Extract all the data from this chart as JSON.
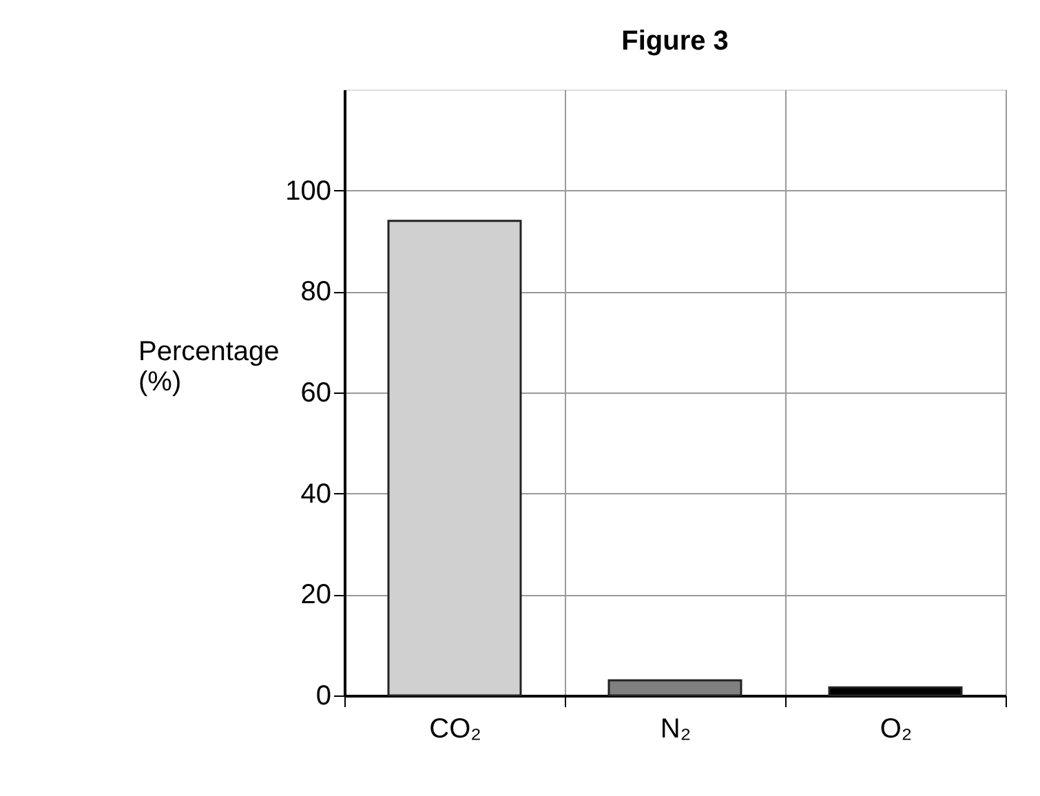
{
  "chart_data": {
    "type": "bar",
    "title": "Figure 3",
    "ylabel": "Percentage\n(%)",
    "categories": [
      "CO₂",
      "N₂",
      "O₂",
      null
    ],
    "values": [
      94,
      3,
      1.6,
      null
    ],
    "colors": [
      "#d0d0d0",
      "#808080",
      "#000000",
      "#ffffff"
    ],
    "ylim": [
      0,
      120
    ],
    "yticks": [
      0,
      20,
      40,
      60,
      80,
      100
    ],
    "grid": true
  }
}
